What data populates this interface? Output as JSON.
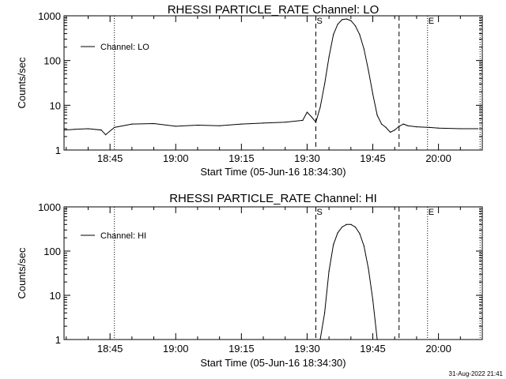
{
  "chart_data": [
    {
      "type": "line",
      "title": "RHESSI PARTICLE_RATE Channel: LO",
      "xlabel": "Start Time (05-Jun-16 18:34:30)",
      "ylabel": "Counts/sec",
      "y_scale": "log",
      "ylim": [
        1,
        1000
      ],
      "xlim": [
        "18:34:30",
        "20:10:00"
      ],
      "x_ticks": [
        "18:45",
        "19:00",
        "19:15",
        "19:30",
        "19:45",
        "20:00"
      ],
      "y_ticks": [
        "1",
        "10",
        "100",
        "1000"
      ],
      "legend": {
        "placement": "top-left",
        "entries": [
          "Channel: LO"
        ]
      },
      "markers": [
        {
          "label": "S",
          "time": "19:32",
          "style": "dashed"
        },
        {
          "label": "",
          "time": "19:51",
          "style": "dashed"
        },
        {
          "label": "E",
          "time": "19:57.5",
          "style": "dotted"
        }
      ],
      "reference_lines": [
        {
          "time": "18:46",
          "style": "dotted"
        },
        {
          "time": "20:09.5",
          "style": "dotted"
        }
      ],
      "series": [
        {
          "name": "Channel: LO",
          "x": [
            "18:34:30",
            "18:37",
            "18:40",
            "18:43",
            "18:44",
            "18:46",
            "18:50",
            "18:55",
            "19:00",
            "19:05",
            "19:10",
            "19:15",
            "19:20",
            "19:25",
            "19:29",
            "19:30",
            "19:31",
            "19:32",
            "19:33",
            "19:34",
            "19:35",
            "19:36",
            "19:37",
            "19:38",
            "19:39",
            "19:40",
            "19:41",
            "19:42",
            "19:43",
            "19:44",
            "19:45",
            "19:46",
            "19:47",
            "19:48",
            "19:49",
            "19:50",
            "19:51",
            "19:52",
            "19:53",
            "19:55",
            "19:58",
            "20:00",
            "20:05",
            "20:09"
          ],
          "values": [
            2.8,
            2.9,
            3.0,
            2.8,
            2.2,
            3.2,
            3.8,
            3.9,
            3.4,
            3.6,
            3.5,
            3.8,
            4.0,
            4.2,
            4.6,
            7.0,
            5.5,
            4.2,
            9.0,
            30,
            120,
            380,
            650,
            820,
            850,
            780,
            600,
            380,
            180,
            60,
            18,
            6,
            3.8,
            3.2,
            2.5,
            2.8,
            3.4,
            3.8,
            3.5,
            3.3,
            3.2,
            3.1,
            3.0,
            3.0
          ]
        }
      ]
    },
    {
      "type": "line",
      "title": "RHESSI PARTICLE_RATE Channel: HI",
      "xlabel": "Start Time (05-Jun-16 18:34:30)",
      "ylabel": "Counts/sec",
      "y_scale": "log",
      "ylim": [
        1,
        1000
      ],
      "xlim": [
        "18:34:30",
        "20:10:00"
      ],
      "x_ticks": [
        "18:45",
        "19:00",
        "19:15",
        "19:30",
        "19:45",
        "20:00"
      ],
      "y_ticks": [
        "1",
        "10",
        "100",
        "1000"
      ],
      "legend": {
        "placement": "top-left",
        "entries": [
          "Channel: HI"
        ]
      },
      "markers": [
        {
          "label": "S",
          "time": "19:32",
          "style": "dashed"
        },
        {
          "label": "",
          "time": "19:51",
          "style": "dashed"
        },
        {
          "label": "E",
          "time": "19:57.5",
          "style": "dotted"
        }
      ],
      "reference_lines": [
        {
          "time": "18:46",
          "style": "dotted"
        },
        {
          "time": "20:09.5",
          "style": "dotted"
        }
      ],
      "series": [
        {
          "name": "Channel: HI",
          "x": [
            "19:33",
            "19:34",
            "19:35",
            "19:36",
            "19:37",
            "19:38",
            "19:39",
            "19:40",
            "19:41",
            "19:42",
            "19:43",
            "19:44",
            "19:45",
            "19:46"
          ],
          "values": [
            1.0,
            4.0,
            35,
            140,
            260,
            350,
            400,
            400,
            350,
            250,
            130,
            40,
            8,
            1.0
          ]
        }
      ]
    }
  ],
  "footer": {
    "timestamp": "31-Aug-2022 21:41"
  }
}
